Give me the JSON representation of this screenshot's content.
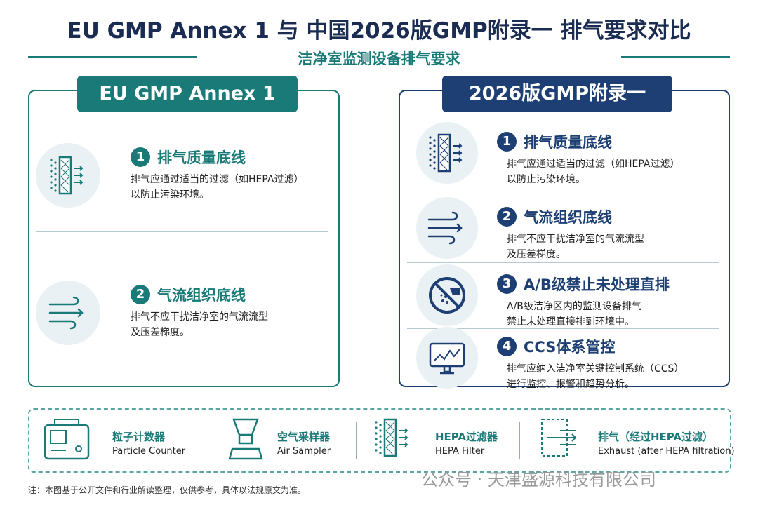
{
  "title": "EU GMP Annex 1 与 中国2026版GMP附录一 排气要求对比",
  "subtitle": "洁净室监测设备排气要求",
  "panels": [
    {
      "header": "EU GMP Annex 1",
      "items": [
        {
          "number": 1,
          "title": "排气质量底线",
          "lines": [
            "排气应通过适当的过滤（如HEPA过滤）",
            "以防止污染环境。"
          ]
        },
        {
          "number": 2,
          "title": "气流组织底线",
          "lines": [
            "排气不应干扰洁净室的气流流型",
            "及压差梯度。"
          ]
        }
      ]
    },
    {
      "header": "2026版GMP附录一",
      "items": [
        {
          "number": 1,
          "title": "排气质量底线",
          "lines": [
            "排气应通过适当的过滤（如HEPA过滤）",
            "以防止污染环境。"
          ]
        },
        {
          "number": 2,
          "title": "气流组织底线",
          "lines": [
            "排气不应干扰洁净室的气流流型",
            "及压差梯度。"
          ]
        },
        {
          "number": 3,
          "title": "A/B级禁止未处理直排",
          "lines": [
            "A/B级洁净区内的监测设备排气",
            "禁止未处理直接排到环境中。"
          ]
        },
        {
          "number": 4,
          "title": "CCS体系管控",
          "lines": [
            "排气应纳入洁净室关键控制系统（CCS）",
            "进行监控、报警和趋势分析。"
          ]
        }
      ]
    }
  ],
  "legend": [
    {
      "title": "粒子计数器",
      "subtitle": "Particle Counter"
    },
    {
      "title": "空气采样器",
      "subtitle": "Air Sampler"
    },
    {
      "title": "HEPA过滤器",
      "subtitle": "HEPA Filter"
    },
    {
      "title": "排气（经过HEPA过滤）",
      "subtitle": "Exhaust (after HEPA filtration)"
    }
  ],
  "watermark": "公众号 · 天津盛源科技有限公司",
  "footnote": "注：本图基于公开文件和行业解读整理，仅供参考，具体以法规原文为准。"
}
